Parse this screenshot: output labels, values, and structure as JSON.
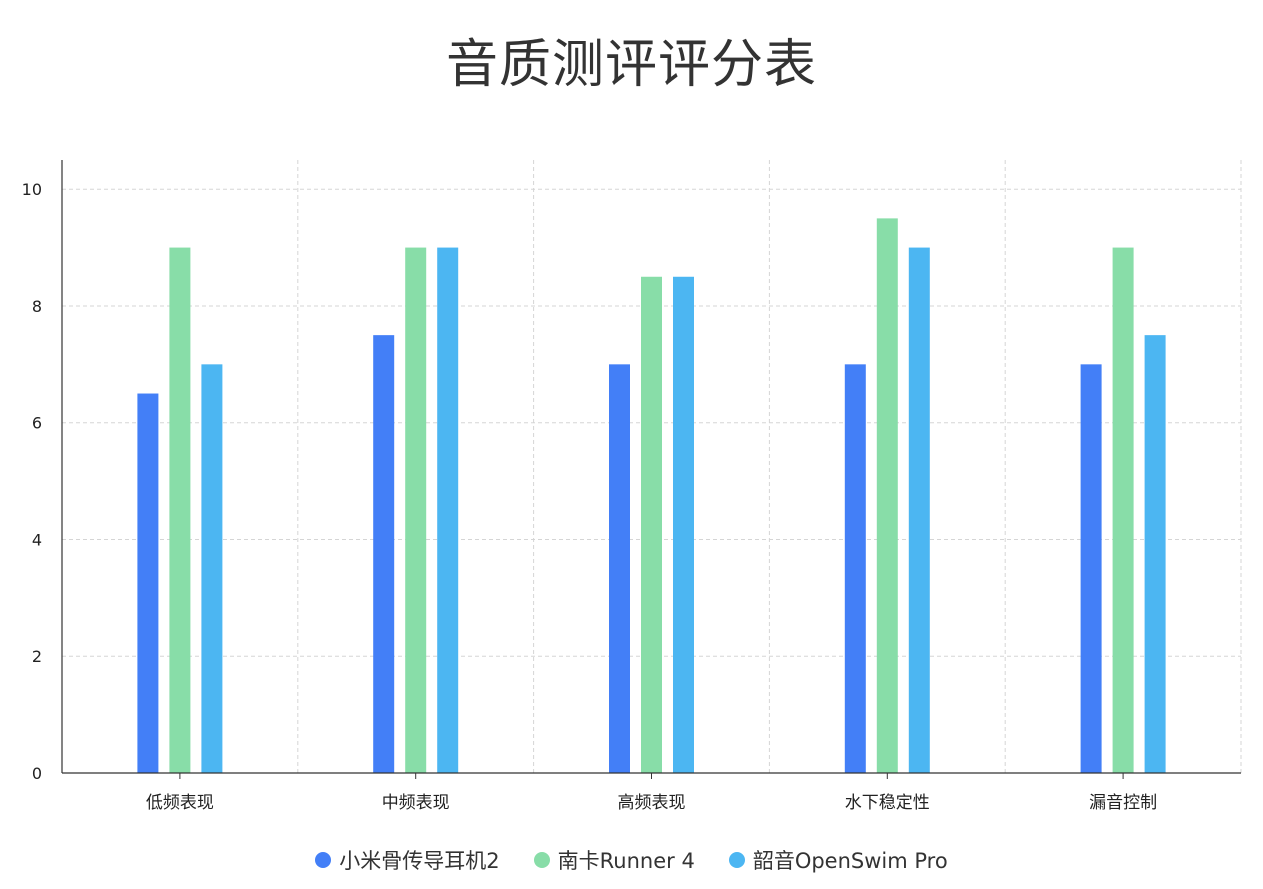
{
  "chart_data": {
    "type": "bar",
    "title": "音质测评评分表",
    "xlabel": "",
    "ylabel": "",
    "categories": [
      "低频表现",
      "中频表现",
      "高频表现",
      "水下稳定性",
      "漏音控制"
    ],
    "series": [
      {
        "name": "小米骨传导耳机2",
        "color": "#437FF7",
        "values": [
          6.5,
          7.5,
          7.0,
          7.0,
          7.0
        ]
      },
      {
        "name": "南卡Runner 4",
        "color": "#88DDA8",
        "values": [
          9.0,
          9.0,
          8.5,
          9.5,
          9.0
        ]
      },
      {
        "name": "韶音OpenSwim Pro",
        "color": "#4CB6F2",
        "values": [
          7.0,
          9.0,
          8.5,
          9.0,
          7.5
        ]
      }
    ],
    "ylim": [
      0,
      10.5
    ],
    "yticks": [
      0,
      2,
      4,
      6,
      8,
      10
    ],
    "ytick_labels": [
      "0",
      "2",
      "4",
      "6",
      "8",
      "10"
    ],
    "grid": true,
    "legend_position": "bottom-center"
  }
}
